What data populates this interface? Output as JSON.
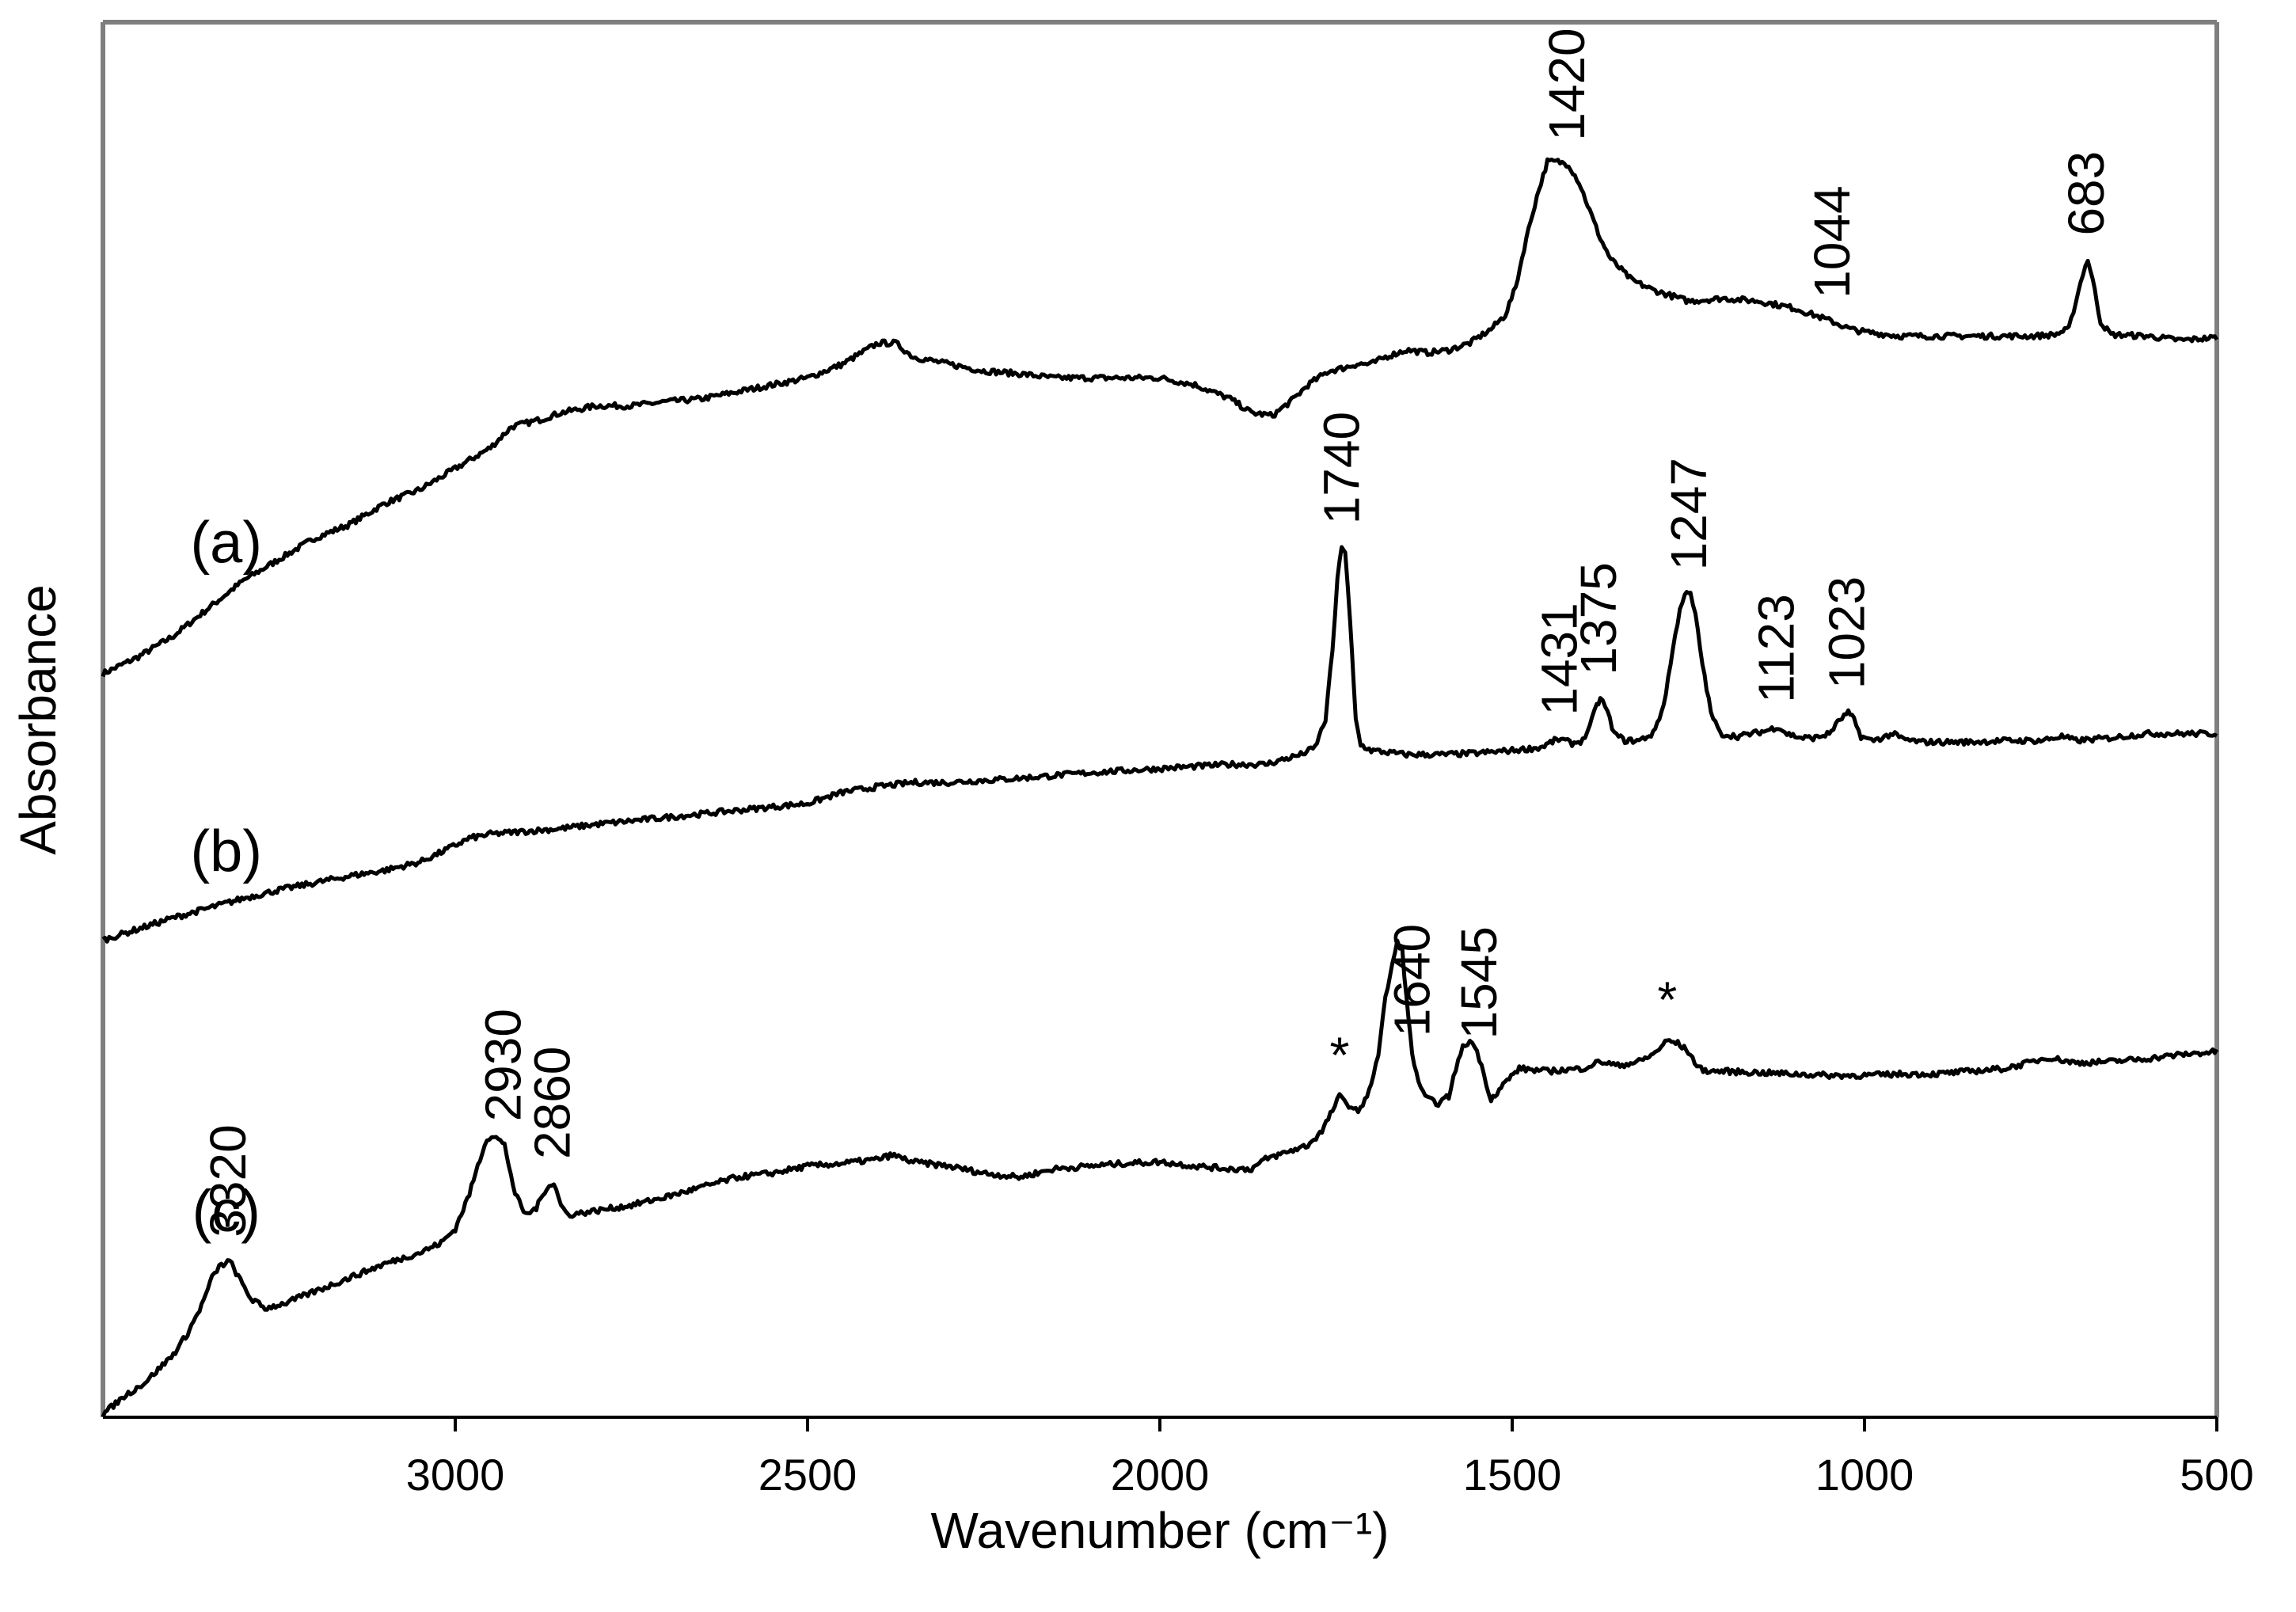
{
  "chart_data": {
    "type": "line",
    "title": "",
    "xlabel": "Wavenumber (cm⁻¹)",
    "ylabel": "Absorbance",
    "xlim": [
      3500,
      500
    ],
    "x_reversed": true,
    "ylim": [
      0,
      1
    ],
    "yticks_shown": false,
    "grid": false,
    "xticks": [
      3000,
      2500,
      2000,
      1500,
      1000,
      500
    ],
    "xtick_labels": [
      "3000",
      "2500",
      "2000",
      "1500",
      "1000",
      "500"
    ],
    "series": [
      {
        "name": "(a)",
        "label": "(a)",
        "label_x": 3325,
        "points": [
          [
            3500,
            0.533
          ],
          [
            3450,
            0.545
          ],
          [
            3400,
            0.56
          ],
          [
            3350,
            0.58
          ],
          [
            3300,
            0.6
          ],
          [
            3250,
            0.615
          ],
          [
            3200,
            0.63
          ],
          [
            3150,
            0.64
          ],
          [
            3100,
            0.655
          ],
          [
            3050,
            0.665
          ],
          [
            3000,
            0.68
          ],
          [
            2950,
            0.695
          ],
          [
            2920,
            0.71
          ],
          [
            2880,
            0.715
          ],
          [
            2850,
            0.72
          ],
          [
            2800,
            0.725
          ],
          [
            2750,
            0.725
          ],
          [
            2700,
            0.728
          ],
          [
            2650,
            0.73
          ],
          [
            2600,
            0.735
          ],
          [
            2550,
            0.74
          ],
          [
            2500,
            0.745
          ],
          [
            2450,
            0.755
          ],
          [
            2400,
            0.77
          ],
          [
            2375,
            0.77
          ],
          [
            2350,
            0.76
          ],
          [
            2300,
            0.755
          ],
          [
            2250,
            0.75
          ],
          [
            2200,
            0.748
          ],
          [
            2150,
            0.745
          ],
          [
            2100,
            0.745
          ],
          [
            2050,
            0.745
          ],
          [
            2000,
            0.745
          ],
          [
            1950,
            0.74
          ],
          [
            1900,
            0.73
          ],
          [
            1870,
            0.72
          ],
          [
            1840,
            0.718
          ],
          [
            1810,
            0.73
          ],
          [
            1790,
            0.74
          ],
          [
            1760,
            0.75
          ],
          [
            1740,
            0.752
          ],
          [
            1720,
            0.755
          ],
          [
            1700,
            0.755
          ],
          [
            1680,
            0.76
          ],
          [
            1650,
            0.765
          ],
          [
            1620,
            0.763
          ],
          [
            1590,
            0.765
          ],
          [
            1560,
            0.77
          ],
          [
            1530,
            0.78
          ],
          [
            1510,
            0.79
          ],
          [
            1495,
            0.81
          ],
          [
            1480,
            0.845
          ],
          [
            1465,
            0.875
          ],
          [
            1450,
            0.9
          ],
          [
            1435,
            0.9
          ],
          [
            1420,
            0.898
          ],
          [
            1405,
            0.885
          ],
          [
            1390,
            0.865
          ],
          [
            1375,
            0.845
          ],
          [
            1360,
            0.83
          ],
          [
            1330,
            0.815
          ],
          [
            1300,
            0.808
          ],
          [
            1250,
            0.8
          ],
          [
            1200,
            0.802
          ],
          [
            1150,
            0.8
          ],
          [
            1100,
            0.795
          ],
          [
            1060,
            0.788
          ],
          [
            1044,
            0.785
          ],
          [
            1020,
            0.78
          ],
          [
            1000,
            0.778
          ],
          [
            950,
            0.775
          ],
          [
            900,
            0.775
          ],
          [
            850,
            0.775
          ],
          [
            800,
            0.775
          ],
          [
            760,
            0.775
          ],
          [
            730,
            0.776
          ],
          [
            710,
            0.78
          ],
          [
            700,
            0.8
          ],
          [
            690,
            0.82
          ],
          [
            683,
            0.83
          ],
          [
            676,
            0.815
          ],
          [
            665,
            0.785
          ],
          [
            650,
            0.776
          ],
          [
            600,
            0.775
          ],
          [
            550,
            0.772
          ],
          [
            500,
            0.774
          ]
        ]
      },
      {
        "name": "(b)",
        "label": "(b)",
        "label_x": 3325,
        "points": [
          [
            3500,
            0.342
          ],
          [
            3450,
            0.35
          ],
          [
            3400,
            0.358
          ],
          [
            3350,
            0.365
          ],
          [
            3300,
            0.372
          ],
          [
            3250,
            0.378
          ],
          [
            3200,
            0.383
          ],
          [
            3150,
            0.388
          ],
          [
            3100,
            0.392
          ],
          [
            3050,
            0.398
          ],
          [
            3020,
            0.405
          ],
          [
            3000,
            0.41
          ],
          [
            2980,
            0.415
          ],
          [
            2950,
            0.418
          ],
          [
            2900,
            0.42
          ],
          [
            2850,
            0.422
          ],
          [
            2800,
            0.425
          ],
          [
            2700,
            0.43
          ],
          [
            2600,
            0.435
          ],
          [
            2500,
            0.44
          ],
          [
            2450,
            0.448
          ],
          [
            2400,
            0.452
          ],
          [
            2350,
            0.455
          ],
          [
            2300,
            0.455
          ],
          [
            2200,
            0.458
          ],
          [
            2100,
            0.462
          ],
          [
            2000,
            0.465
          ],
          [
            1900,
            0.468
          ],
          [
            1850,
            0.468
          ],
          [
            1800,
            0.475
          ],
          [
            1780,
            0.48
          ],
          [
            1765,
            0.5
          ],
          [
            1755,
            0.55
          ],
          [
            1748,
            0.6
          ],
          [
            1742,
            0.625
          ],
          [
            1737,
            0.62
          ],
          [
            1730,
            0.57
          ],
          [
            1722,
            0.5
          ],
          [
            1715,
            0.482
          ],
          [
            1700,
            0.478
          ],
          [
            1650,
            0.475
          ],
          [
            1600,
            0.475
          ],
          [
            1550,
            0.476
          ],
          [
            1500,
            0.478
          ],
          [
            1460,
            0.48
          ],
          [
            1440,
            0.485
          ],
          [
            1431,
            0.486
          ],
          [
            1415,
            0.483
          ],
          [
            1400,
            0.485
          ],
          [
            1390,
            0.495
          ],
          [
            1380,
            0.51
          ],
          [
            1375,
            0.515
          ],
          [
            1368,
            0.51
          ],
          [
            1355,
            0.49
          ],
          [
            1340,
            0.485
          ],
          [
            1320,
            0.485
          ],
          [
            1300,
            0.49
          ],
          [
            1285,
            0.51
          ],
          [
            1272,
            0.55
          ],
          [
            1262,
            0.58
          ],
          [
            1255,
            0.59
          ],
          [
            1247,
            0.59
          ],
          [
            1240,
            0.575
          ],
          [
            1230,
            0.54
          ],
          [
            1218,
            0.505
          ],
          [
            1205,
            0.49
          ],
          [
            1180,
            0.488
          ],
          [
            1160,
            0.49
          ],
          [
            1140,
            0.492
          ],
          [
            1123,
            0.495
          ],
          [
            1110,
            0.49
          ],
          [
            1090,
            0.487
          ],
          [
            1070,
            0.487
          ],
          [
            1050,
            0.49
          ],
          [
            1035,
            0.5
          ],
          [
            1023,
            0.505
          ],
          [
            1015,
            0.5
          ],
          [
            1005,
            0.488
          ],
          [
            990,
            0.485
          ],
          [
            975,
            0.487
          ],
          [
            960,
            0.49
          ],
          [
            945,
            0.486
          ],
          [
            920,
            0.484
          ],
          [
            900,
            0.484
          ],
          [
            850,
            0.484
          ],
          [
            800,
            0.485
          ],
          [
            750,
            0.485
          ],
          [
            720,
            0.488
          ],
          [
            700,
            0.485
          ],
          [
            650,
            0.487
          ],
          [
            600,
            0.49
          ],
          [
            550,
            0.49
          ],
          [
            500,
            0.49
          ]
        ]
      },
      {
        "name": "(c)",
        "label": "(c)",
        "label_x": 3325,
        "points": [
          [
            3500,
            0.002
          ],
          [
            3470,
            0.015
          ],
          [
            3440,
            0.025
          ],
          [
            3400,
            0.045
          ],
          [
            3380,
            0.06
          ],
          [
            3360,
            0.08
          ],
          [
            3345,
            0.1
          ],
          [
            3335,
            0.108
          ],
          [
            3320,
            0.112
          ],
          [
            3305,
            0.098
          ],
          [
            3290,
            0.085
          ],
          [
            3270,
            0.078
          ],
          [
            3240,
            0.082
          ],
          [
            3200,
            0.09
          ],
          [
            3150,
            0.1
          ],
          [
            3100,
            0.11
          ],
          [
            3050,
            0.118
          ],
          [
            3020,
            0.125
          ],
          [
            3000,
            0.135
          ],
          [
            2980,
            0.16
          ],
          [
            2965,
            0.185
          ],
          [
            2955,
            0.2
          ],
          [
            2945,
            0.202
          ],
          [
            2930,
            0.195
          ],
          [
            2915,
            0.16
          ],
          [
            2900,
            0.145
          ],
          [
            2885,
            0.15
          ],
          [
            2870,
            0.165
          ],
          [
            2860,
            0.168
          ],
          [
            2850,
            0.152
          ],
          [
            2840,
            0.145
          ],
          [
            2800,
            0.148
          ],
          [
            2750,
            0.152
          ],
          [
            2700,
            0.158
          ],
          [
            2650,
            0.165
          ],
          [
            2600,
            0.172
          ],
          [
            2550,
            0.175
          ],
          [
            2500,
            0.18
          ],
          [
            2450,
            0.182
          ],
          [
            2400,
            0.185
          ],
          [
            2380,
            0.188
          ],
          [
            2350,
            0.183
          ],
          [
            2300,
            0.18
          ],
          [
            2250,
            0.175
          ],
          [
            2200,
            0.172
          ],
          [
            2150,
            0.178
          ],
          [
            2100,
            0.18
          ],
          [
            2050,
            0.182
          ],
          [
            2000,
            0.183
          ],
          [
            1950,
            0.18
          ],
          [
            1900,
            0.178
          ],
          [
            1870,
            0.178
          ],
          [
            1850,
            0.185
          ],
          [
            1820,
            0.19
          ],
          [
            1790,
            0.195
          ],
          [
            1770,
            0.205
          ],
          [
            1755,
            0.22
          ],
          [
            1745,
            0.23
          ],
          [
            1735,
            0.225
          ],
          [
            1722,
            0.22
          ],
          [
            1712,
            0.222
          ],
          [
            1700,
            0.24
          ],
          [
            1690,
            0.26
          ],
          [
            1680,
            0.3
          ],
          [
            1670,
            0.325
          ],
          [
            1663,
            0.34
          ],
          [
            1656,
            0.335
          ],
          [
            1650,
            0.3
          ],
          [
            1642,
            0.26
          ],
          [
            1630,
            0.235
          ],
          [
            1620,
            0.228
          ],
          [
            1605,
            0.225
          ],
          [
            1590,
            0.23
          ],
          [
            1580,
            0.25
          ],
          [
            1570,
            0.265
          ],
          [
            1560,
            0.27
          ],
          [
            1550,
            0.263
          ],
          [
            1540,
            0.245
          ],
          [
            1530,
            0.228
          ],
          [
            1510,
            0.24
          ],
          [
            1490,
            0.25
          ],
          [
            1450,
            0.248
          ],
          [
            1400,
            0.25
          ],
          [
            1375,
            0.255
          ],
          [
            1350,
            0.252
          ],
          [
            1320,
            0.255
          ],
          [
            1300,
            0.26
          ],
          [
            1280,
            0.27
          ],
          [
            1265,
            0.268
          ],
          [
            1250,
            0.262
          ],
          [
            1235,
            0.25
          ],
          [
            1220,
            0.248
          ],
          [
            1200,
            0.248
          ],
          [
            1150,
            0.247
          ],
          [
            1100,
            0.246
          ],
          [
            1050,
            0.245
          ],
          [
            1000,
            0.245
          ],
          [
            950,
            0.246
          ],
          [
            900,
            0.246
          ],
          [
            850,
            0.248
          ],
          [
            800,
            0.25
          ],
          [
            760,
            0.255
          ],
          [
            740,
            0.258
          ],
          [
            720,
            0.256
          ],
          [
            700,
            0.254
          ],
          [
            650,
            0.255
          ],
          [
            600,
            0.257
          ],
          [
            550,
            0.26
          ],
          [
            500,
            0.262
          ]
        ]
      }
    ],
    "peak_labels": [
      {
        "series": "(a)",
        "x": 1420,
        "text": "1420"
      },
      {
        "series": "(a)",
        "x": 1044,
        "text": "1044"
      },
      {
        "series": "(a)",
        "x": 683,
        "text": "683"
      },
      {
        "series": "(b)",
        "x": 1740,
        "text": "1740"
      },
      {
        "series": "(b)",
        "x": 1431,
        "text": "1431"
      },
      {
        "series": "(b)",
        "x": 1375,
        "text": "1375"
      },
      {
        "series": "(b)",
        "x": 1247,
        "text": "1247"
      },
      {
        "series": "(b)",
        "x": 1123,
        "text": "1123"
      },
      {
        "series": "(b)",
        "x": 1023,
        "text": "1023"
      },
      {
        "series": "(c)",
        "x": 3320,
        "text": "3320"
      },
      {
        "series": "(c)",
        "x": 2930,
        "text": "2930"
      },
      {
        "series": "(c)",
        "x": 2860,
        "text": "2860"
      },
      {
        "series": "(c)",
        "x": 1640,
        "text": "1640"
      },
      {
        "series": "(c)",
        "x": 1545,
        "text": "1545"
      }
    ],
    "annotations": [
      {
        "series": "(c)",
        "x": 1745,
        "text": "*"
      },
      {
        "series": "(c)",
        "x": 1280,
        "text": "*"
      }
    ]
  }
}
